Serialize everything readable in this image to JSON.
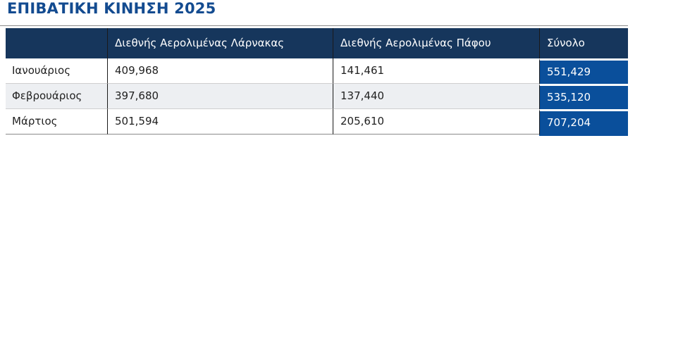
{
  "page": {
    "title": "ΕΠΙΒΑΤΙΚΗ ΚΙΝΗΣΗ 2025"
  },
  "table": {
    "columns": [
      "",
      "Διεθνής Αερολιμένας Λάρνακας",
      "Διεθνής Αερολιμένας Πάφου",
      "Σύνολο"
    ],
    "rows": [
      {
        "month": "Ιανουάριος",
        "larnaca": "409,968",
        "paphos": "141,461",
        "total": "551,429"
      },
      {
        "month": "Φεβρουάριος",
        "larnaca": "397,680",
        "paphos": "137,440",
        "total": "535,120"
      },
      {
        "month": "Μάρτιος",
        "larnaca": "501,594",
        "paphos": "205,610",
        "total": "707,204"
      }
    ]
  },
  "chart_data": {
    "type": "table",
    "title": "ΕΠΙΒΑΤΙΚΗ ΚΙΝΗΣΗ 2025",
    "columns": [
      "Διεθνής Αερολιμένας Λάρνακας",
      "Διεθνής Αερολιμένας Πάφου",
      "Σύνολο"
    ],
    "row_labels": [
      "Ιανουάριος",
      "Φεβρουάριος",
      "Μάρτιος"
    ],
    "values": [
      [
        409968,
        141461,
        551429
      ],
      [
        397680,
        137440,
        535120
      ],
      [
        501594,
        205610,
        707204
      ]
    ]
  },
  "colors": {
    "title": "#134B90",
    "header_bg": "#16365C",
    "header_text": "#FFFFFF",
    "total_bg": "#0A4F9B",
    "total_text": "#FFFFFF",
    "row_bg": "#FFFFFF",
    "row_alt_bg": "#EDEFF2",
    "cell_text": "#1F1F1F",
    "row_border": "#CFCFCF",
    "table_edge": "#8A8A8A",
    "col_border": "#1A1A1A"
  }
}
